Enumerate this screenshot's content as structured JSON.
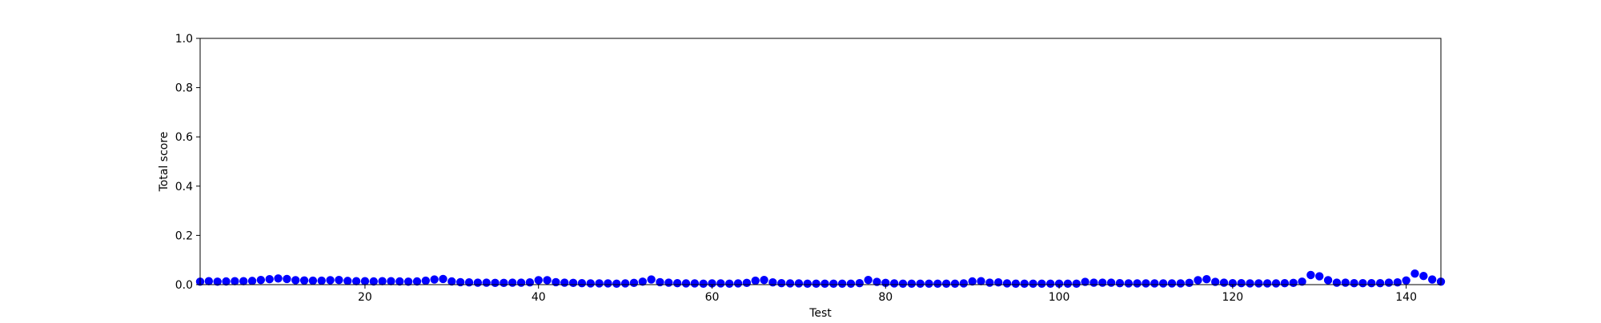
{
  "chart_data": {
    "type": "scatter",
    "title": "",
    "xlabel": "Test",
    "ylabel": "Total score",
    "xlim": [
      1,
      144
    ],
    "ylim": [
      0.0,
      1.0
    ],
    "xticks": [
      20,
      40,
      60,
      80,
      100,
      120,
      140
    ],
    "xtick_labels": [
      "20",
      "40",
      "60",
      "80",
      "100",
      "120",
      "140"
    ],
    "yticks": [
      0.0,
      0.2,
      0.4,
      0.6,
      0.8,
      1.0
    ],
    "ytick_labels": [
      "0.0",
      "0.2",
      "0.4",
      "0.6",
      "0.8",
      "1.0"
    ],
    "grid": false,
    "colors": {
      "points": "#0000ff",
      "axes": "#000000",
      "background": "#ffffff"
    },
    "series": [
      {
        "x": [
          1,
          2,
          3,
          4,
          5,
          6,
          7,
          8,
          9,
          10,
          11,
          12,
          13,
          14,
          15,
          16,
          17,
          18,
          19,
          20,
          21,
          22,
          23,
          24,
          25,
          26,
          27,
          28,
          29,
          30,
          31,
          32,
          33,
          34,
          35,
          36,
          37,
          38,
          39,
          40,
          41,
          42,
          43,
          44,
          45,
          46,
          47,
          48,
          49,
          50,
          51,
          52,
          53,
          54,
          55,
          56,
          57,
          58,
          59,
          60,
          61,
          62,
          63,
          64,
          65,
          66,
          67,
          68,
          69,
          70,
          71,
          72,
          73,
          74,
          75,
          76,
          77,
          78,
          79,
          80,
          81,
          82,
          83,
          84,
          85,
          86,
          87,
          88,
          89,
          90,
          91,
          92,
          93,
          94,
          95,
          96,
          97,
          98,
          99,
          100,
          101,
          102,
          103,
          104,
          105,
          106,
          107,
          108,
          109,
          110,
          111,
          112,
          113,
          114,
          115,
          116,
          117,
          118,
          119,
          120,
          121,
          122,
          123,
          124,
          125,
          126,
          127,
          128,
          129,
          130,
          131,
          132,
          133,
          134,
          135,
          136,
          137,
          138,
          139,
          140,
          141,
          142,
          143,
          144
        ],
        "y": [
          0.012,
          0.014,
          0.012,
          0.013,
          0.014,
          0.014,
          0.015,
          0.019,
          0.022,
          0.025,
          0.023,
          0.018,
          0.017,
          0.016,
          0.016,
          0.018,
          0.019,
          0.015,
          0.014,
          0.014,
          0.013,
          0.014,
          0.014,
          0.013,
          0.012,
          0.013,
          0.016,
          0.021,
          0.023,
          0.013,
          0.01,
          0.009,
          0.008,
          0.008,
          0.007,
          0.007,
          0.008,
          0.008,
          0.009,
          0.018,
          0.018,
          0.01,
          0.008,
          0.007,
          0.006,
          0.005,
          0.005,
          0.005,
          0.004,
          0.005,
          0.007,
          0.012,
          0.021,
          0.01,
          0.008,
          0.006,
          0.005,
          0.005,
          0.004,
          0.005,
          0.005,
          0.004,
          0.005,
          0.007,
          0.016,
          0.019,
          0.009,
          0.006,
          0.005,
          0.005,
          0.004,
          0.004,
          0.004,
          0.004,
          0.004,
          0.004,
          0.006,
          0.019,
          0.011,
          0.007,
          0.005,
          0.004,
          0.004,
          0.004,
          0.004,
          0.004,
          0.004,
          0.004,
          0.005,
          0.013,
          0.014,
          0.008,
          0.009,
          0.005,
          0.004,
          0.004,
          0.004,
          0.004,
          0.004,
          0.004,
          0.004,
          0.004,
          0.011,
          0.008,
          0.008,
          0.008,
          0.006,
          0.005,
          0.005,
          0.005,
          0.005,
          0.005,
          0.005,
          0.005,
          0.007,
          0.018,
          0.022,
          0.011,
          0.008,
          0.006,
          0.006,
          0.005,
          0.005,
          0.005,
          0.005,
          0.006,
          0.007,
          0.012,
          0.039,
          0.034,
          0.018,
          0.008,
          0.008,
          0.006,
          0.006,
          0.006,
          0.006,
          0.008,
          0.009,
          0.017,
          0.045,
          0.035,
          0.021,
          0.012
        ]
      }
    ]
  }
}
